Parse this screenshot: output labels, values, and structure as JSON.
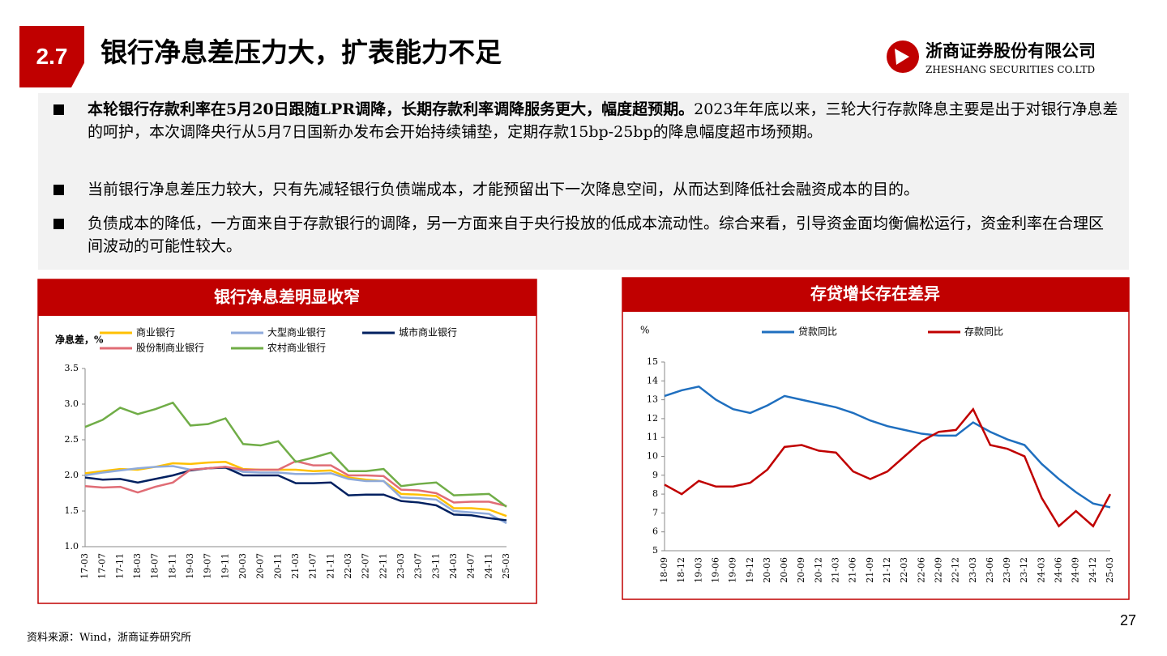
{
  "header": {
    "section": "2.7",
    "title": "银行净息差压力大，扩表能力不足",
    "company": "浙商证券股份有限公司",
    "company_en": "ZHESHANG SECURITIES CO.LTD"
  },
  "bullets": [
    {
      "bold": "本轮银行存款利率在5月20日跟随LPR调降，长期存款利率调降服务更大，幅度超预期。",
      "text": "2023年年底以来，三轮大行存款降息主要是出于对银行净息差的呵护，本次调降央行从5月7日国新办发布会开始持续铺垫，定期存款15bp-25bp的降息幅度超市场预期。"
    },
    {
      "text": "当前银行净息差压力较大，只有先减轻银行负债端成本，才能预留出下一次降息空间，从而达到降低社会融资成本的目的。"
    },
    {
      "text": "负债成本的降低，一方面来自于存款银行的调降，另一方面来自于央行投放的低成本流动性。综合来看，引导资金面均衡偏松运行，资金利率在合理区间波动的可能性较大。"
    }
  ],
  "chart_data": [
    {
      "type": "line",
      "title": "银行净息差明显收窄",
      "y_label": "净息差，%",
      "categories": [
        "17-03",
        "17-07",
        "17-11",
        "18-03",
        "18-07",
        "18-11",
        "19-03",
        "19-07",
        "19-11",
        "20-03",
        "20-07",
        "20-11",
        "21-03",
        "21-07",
        "21-11",
        "22-03",
        "22-07",
        "22-11",
        "23-03",
        "23-07",
        "23-11",
        "24-03",
        "24-07",
        "24-11",
        "25-03"
      ],
      "ylim": [
        1.0,
        3.5
      ],
      "yticks": [
        {
          "value": 1.0,
          "label": "1.0"
        },
        1.5,
        {
          "value": 2.0,
          "label": "2.0"
        },
        2.5,
        {
          "value": 3.0,
          "label": "3.0"
        },
        3.5
      ],
      "series": [
        {
          "name": "商业银行",
          "color": "#ffc000",
          "values": [
            2.03,
            2.06,
            2.09,
            2.08,
            2.12,
            2.17,
            2.16,
            2.18,
            2.19,
            2.09,
            2.08,
            2.08,
            2.08,
            2.06,
            2.07,
            1.97,
            1.94,
            1.92,
            1.74,
            1.73,
            1.71,
            1.54,
            1.54,
            1.52,
            1.43
          ]
        },
        {
          "name": "大型商业银行",
          "color": "#8eaadb",
          "values": [
            2.0,
            2.04,
            2.07,
            2.1,
            2.12,
            2.13,
            2.08,
            2.1,
            2.12,
            2.05,
            2.04,
            2.04,
            2.02,
            2.02,
            2.03,
            1.95,
            1.92,
            1.92,
            1.69,
            1.68,
            1.66,
            1.5,
            1.48,
            1.46,
            1.33
          ]
        },
        {
          "name": "城市商业银行",
          "color": "#002060",
          "values": [
            1.97,
            1.94,
            1.95,
            1.9,
            1.95,
            2.0,
            2.07,
            2.1,
            2.11,
            2.0,
            2.0,
            2.0,
            1.89,
            1.89,
            1.9,
            1.72,
            1.73,
            1.73,
            1.64,
            1.62,
            1.58,
            1.45,
            1.44,
            1.4,
            1.37
          ]
        },
        {
          "name": "股份制商业银行",
          "color": "#e06c75",
          "values": [
            1.85,
            1.83,
            1.84,
            1.76,
            1.84,
            1.9,
            2.08,
            2.1,
            2.12,
            2.08,
            2.08,
            2.08,
            2.2,
            2.14,
            2.14,
            2.0,
            2.0,
            1.99,
            1.8,
            1.79,
            1.75,
            1.62,
            1.63,
            1.63,
            1.57
          ]
        },
        {
          "name": "农村商业银行",
          "color": "#70ad47",
          "values": [
            2.68,
            2.78,
            2.95,
            2.86,
            2.93,
            3.02,
            2.7,
            2.72,
            2.8,
            2.44,
            2.42,
            2.48,
            2.19,
            2.25,
            2.32,
            2.06,
            2.06,
            2.09,
            1.85,
            1.88,
            1.9,
            1.72,
            1.73,
            1.74,
            1.56
          ]
        }
      ]
    },
    {
      "type": "line",
      "title": "存贷增长存在差异",
      "y_label": "%",
      "categories": [
        "18-09",
        "18-12",
        "19-03",
        "19-06",
        "19-09",
        "19-12",
        "20-03",
        "20-06",
        "20-09",
        "20-12",
        "21-03",
        "21-06",
        "21-09",
        "21-12",
        "22-03",
        "22-06",
        "22-09",
        "22-12",
        "23-03",
        "23-06",
        "23-09",
        "23-12",
        "24-03",
        "24-06",
        "24-09",
        "24-12",
        "25-03"
      ],
      "ylim": [
        5,
        15
      ],
      "yticks": [
        5,
        6,
        7,
        8,
        9,
        10,
        11,
        12,
        13,
        14,
        15
      ],
      "series": [
        {
          "name": "贷款同比",
          "color": "#1f6fbf",
          "values": [
            13.2,
            13.5,
            13.7,
            13.0,
            12.5,
            12.3,
            12.7,
            13.2,
            13.0,
            12.8,
            12.6,
            12.3,
            11.9,
            11.6,
            11.4,
            11.2,
            11.1,
            11.1,
            11.8,
            11.3,
            10.9,
            10.6,
            9.6,
            8.8,
            8.1,
            7.5,
            7.3
          ]
        },
        {
          "name": "存款同比",
          "color": "#c00000",
          "values": [
            8.5,
            8.0,
            8.7,
            8.4,
            8.4,
            8.6,
            9.3,
            10.5,
            10.6,
            10.3,
            10.2,
            9.2,
            8.8,
            9.2,
            10.0,
            10.8,
            11.3,
            11.4,
            12.5,
            10.6,
            10.4,
            10.0,
            7.8,
            6.3,
            7.1,
            6.3,
            8.0
          ]
        }
      ]
    }
  ],
  "footer": {
    "source": "资料来源：Wind，浙商证券研究所",
    "page": "27"
  }
}
